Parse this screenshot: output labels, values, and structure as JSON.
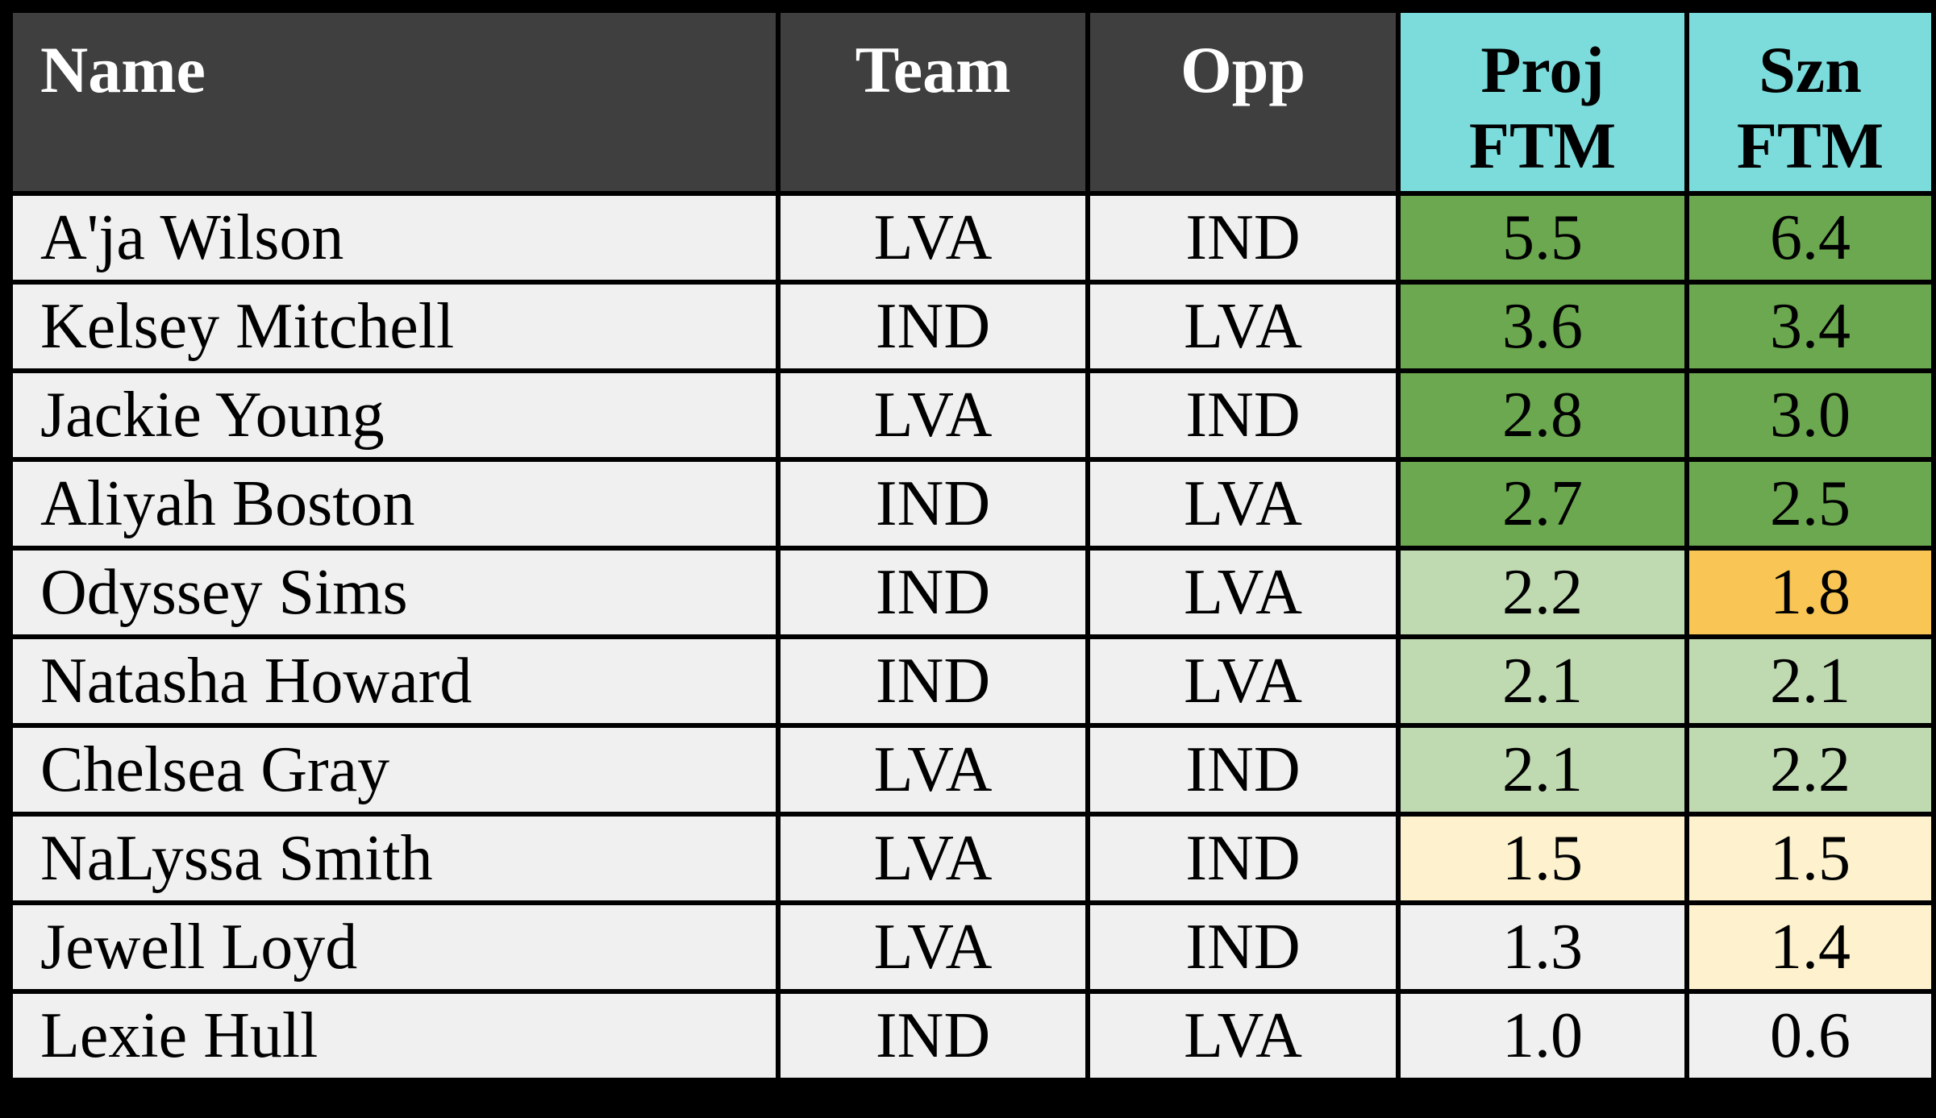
{
  "header": {
    "name": "Name",
    "team": "Team",
    "opp": "Opp",
    "proj1": "Proj",
    "proj2": "FTM",
    "szn1": "Szn",
    "szn2": "FTM"
  },
  "rows": [
    {
      "name": "A'ja Wilson",
      "team": "LVA",
      "opp": "IND",
      "proj": "5.5",
      "szn": "6.4",
      "proj_tone": "green",
      "szn_tone": "green"
    },
    {
      "name": "Kelsey Mitchell",
      "team": "IND",
      "opp": "LVA",
      "proj": "3.6",
      "szn": "3.4",
      "proj_tone": "green",
      "szn_tone": "green"
    },
    {
      "name": "Jackie Young",
      "team": "LVA",
      "opp": "IND",
      "proj": "2.8",
      "szn": "3.0",
      "proj_tone": "green",
      "szn_tone": "green"
    },
    {
      "name": "Aliyah Boston",
      "team": "IND",
      "opp": "LVA",
      "proj": "2.7",
      "szn": "2.5",
      "proj_tone": "green",
      "szn_tone": "green"
    },
    {
      "name": "Odyssey Sims",
      "team": "IND",
      "opp": "LVA",
      "proj": "2.2",
      "szn": "1.8",
      "proj_tone": "lightgreen",
      "szn_tone": "gold"
    },
    {
      "name": "Natasha Howard",
      "team": "IND",
      "opp": "LVA",
      "proj": "2.1",
      "szn": "2.1",
      "proj_tone": "lightgreen",
      "szn_tone": "lightgreen"
    },
    {
      "name": "Chelsea Gray",
      "team": "LVA",
      "opp": "IND",
      "proj": "2.1",
      "szn": "2.2",
      "proj_tone": "lightgreen",
      "szn_tone": "lightgreen"
    },
    {
      "name": "NaLyssa Smith",
      "team": "LVA",
      "opp": "IND",
      "proj": "1.5",
      "szn": "1.5",
      "proj_tone": "paleyellow",
      "szn_tone": "paleyellow"
    },
    {
      "name": "Jewell Loyd",
      "team": "LVA",
      "opp": "IND",
      "proj": "1.3",
      "szn": "1.4",
      "proj_tone": "none",
      "szn_tone": "paleyellow"
    },
    {
      "name": "Lexie Hull",
      "team": "IND",
      "opp": "LVA",
      "proj": "1.0",
      "szn": "0.6",
      "proj_tone": "none",
      "szn_tone": "none"
    }
  ],
  "colors": {
    "header_dark_bg": "#3f3f3f",
    "header_accent_bg": "#7cdcdc",
    "row_bg": "#f0f0f0",
    "green": "#6ba84f",
    "light_green": "#bfdab0",
    "pale_yellow": "#fdf2cd",
    "gold": "#f9c655",
    "border": "#000000",
    "header_text_light": "#ffffff",
    "body_text": "#000000"
  },
  "chart_data": {
    "type": "table",
    "columns": [
      "Name",
      "Team",
      "Opp",
      "Proj FTM",
      "Szn FTM"
    ],
    "rows": [
      [
        "A'ja Wilson",
        "LVA",
        "IND",
        "5.5",
        "6.4"
      ],
      [
        "Kelsey Mitchell",
        "IND",
        "LVA",
        "3.6",
        "3.4"
      ],
      [
        "Jackie Young",
        "LVA",
        "IND",
        "2.8",
        "3.0"
      ],
      [
        "Aliyah Boston",
        "IND",
        "LVA",
        "2.7",
        "2.5"
      ],
      [
        "Odyssey Sims",
        "IND",
        "LVA",
        "2.2",
        "1.8"
      ],
      [
        "Natasha Howard",
        "IND",
        "LVA",
        "2.1",
        "2.1"
      ],
      [
        "Chelsea Gray",
        "LVA",
        "IND",
        "2.1",
        "2.2"
      ],
      [
        "NaLyssa Smith",
        "LVA",
        "IND",
        "1.5",
        "1.5"
      ],
      [
        "Jewell Loyd",
        "LVA",
        "IND",
        "1.3",
        "1.4"
      ],
      [
        "Lexie Hull",
        "IND",
        "LVA",
        "1.0",
        "0.6"
      ]
    ],
    "conditional_formatting": {
      "proj_ftm_tones": [
        "green",
        "green",
        "green",
        "green",
        "lightgreen",
        "lightgreen",
        "lightgreen",
        "paleyellow",
        "none",
        "none"
      ],
      "szn_ftm_tones": [
        "green",
        "green",
        "green",
        "green",
        "gold",
        "lightgreen",
        "lightgreen",
        "paleyellow",
        "paleyellow",
        "none"
      ]
    },
    "legend_position": "none",
    "grid": "black cell borders"
  }
}
